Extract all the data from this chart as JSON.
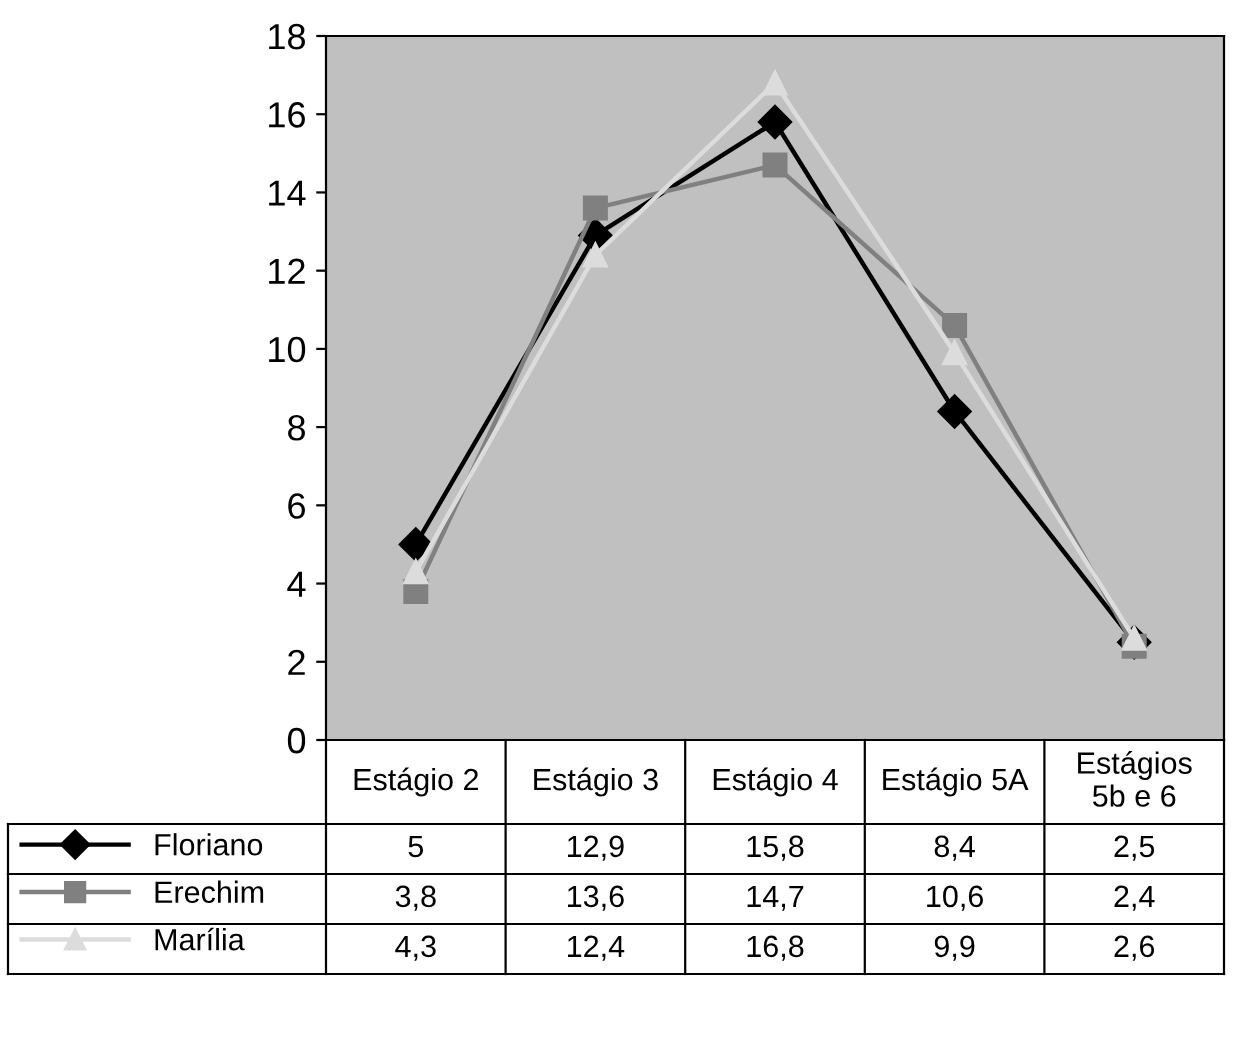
{
  "chart_data": {
    "type": "line",
    "categories": [
      "Estágio 2",
      "Estágio 3",
      "Estágio 4",
      "Estágio 5A",
      "Estágios 5b e 6"
    ],
    "ylim": [
      0,
      18
    ],
    "yticks": [
      0,
      2,
      4,
      6,
      8,
      10,
      12,
      14,
      16,
      18
    ],
    "grid": false,
    "legend": "bottom left",
    "line_style": "solid",
    "series": [
      {
        "name": "Floriano",
        "color": "#000000",
        "marker": "diamond",
        "values": [
          5,
          12.9,
          15.8,
          8.4,
          2.5
        ],
        "value_labels": [
          "5",
          "12,9",
          "15,8",
          "8,4",
          "2,5"
        ]
      },
      {
        "name": "Erechim",
        "color": "#808080",
        "marker": "square",
        "values": [
          3.8,
          13.6,
          14.7,
          10.6,
          2.4
        ],
        "value_labels": [
          "3,8",
          "13,6",
          "14,7",
          "10,6",
          "2,4"
        ]
      },
      {
        "name": "Marília",
        "color": "#dcdcdc",
        "marker": "triangle",
        "values": [
          4.3,
          12.4,
          16.8,
          9.9,
          2.6
        ],
        "value_labels": [
          "4,3",
          "12,4",
          "16,8",
          "9,9",
          "2,6"
        ]
      }
    ]
  }
}
